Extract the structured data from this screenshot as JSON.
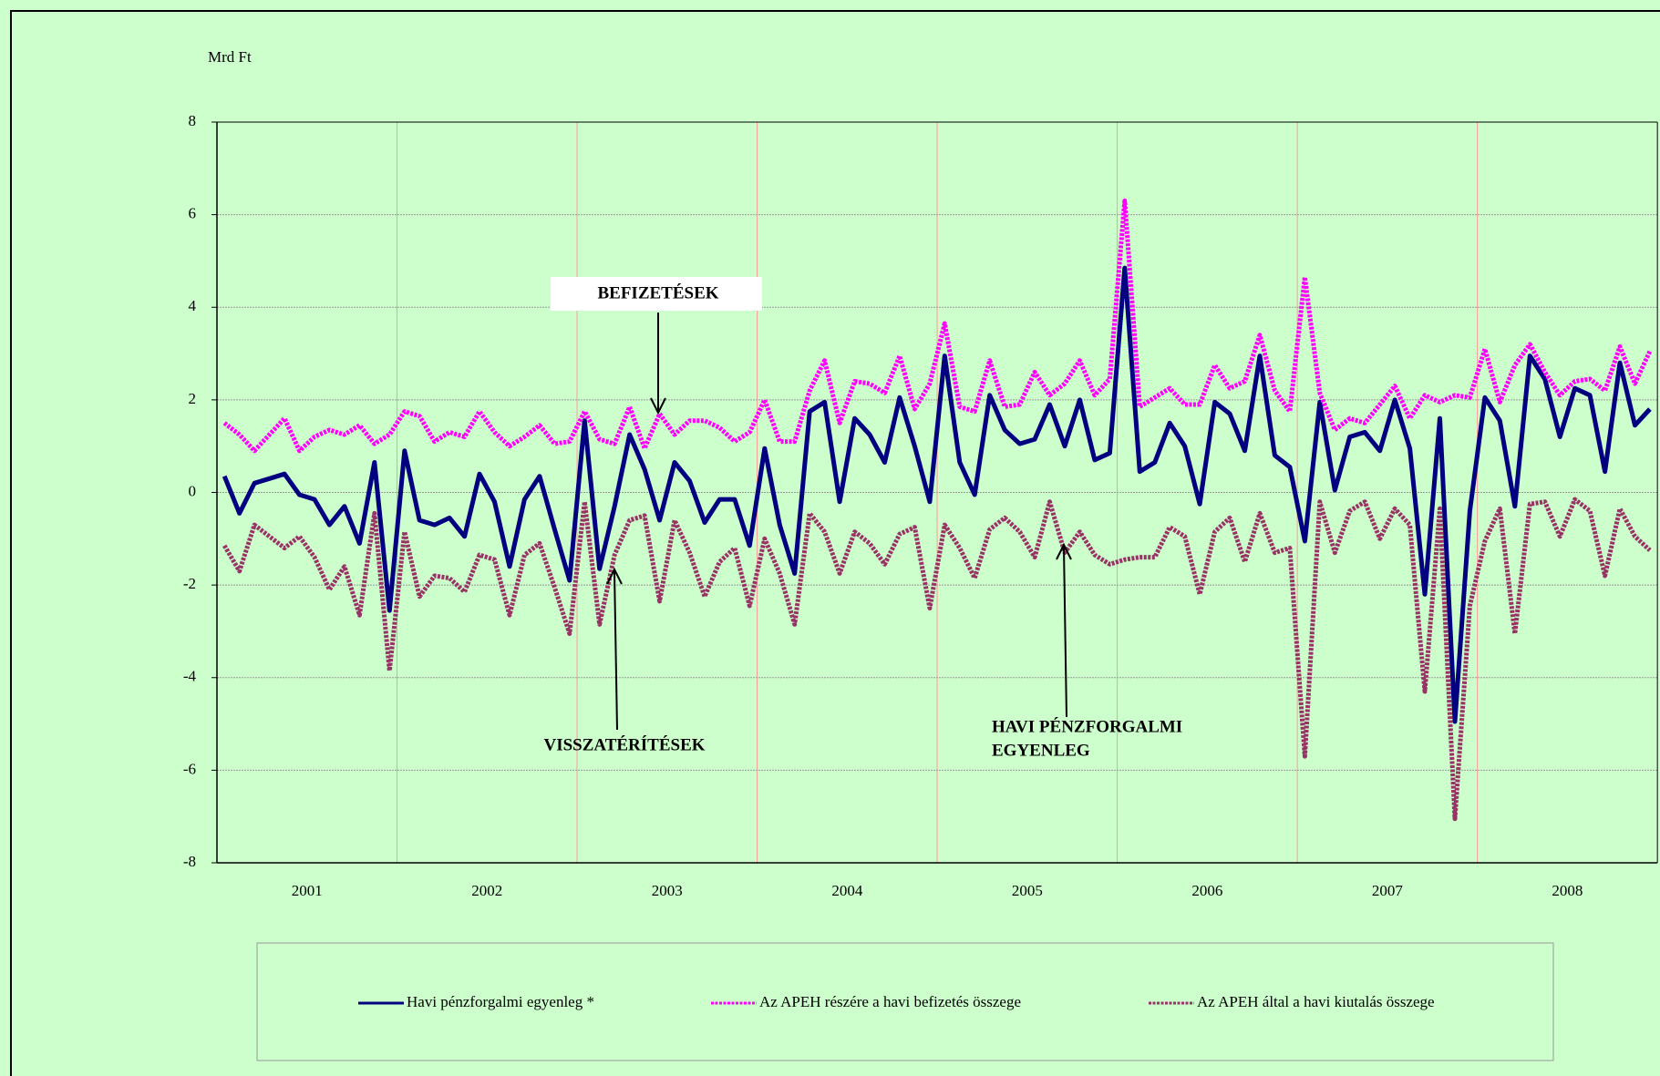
{
  "chart_data": {
    "type": "line",
    "y_axis_label": "Mrd Ft",
    "categories": [
      null,
      null,
      null,
      null,
      null,
      null,
      "2001",
      null,
      null,
      null,
      null,
      null,
      null,
      null,
      null,
      null,
      null,
      null,
      "2002",
      null,
      null,
      null,
      null,
      null,
      null,
      null,
      null,
      null,
      null,
      null,
      "2003",
      null,
      null,
      null,
      null,
      null,
      null,
      null,
      null,
      null,
      null,
      null,
      "2004",
      null,
      null,
      null,
      null,
      null,
      null,
      null,
      null,
      null,
      null,
      null,
      "2005",
      null,
      null,
      null,
      null,
      null,
      null,
      null,
      null,
      null,
      null,
      null,
      "2006",
      null,
      null,
      null,
      null,
      null,
      null,
      null,
      null,
      null,
      null,
      null,
      "2007",
      null,
      null,
      null,
      null,
      null,
      null,
      null,
      null,
      null,
      null,
      null,
      "2008",
      null,
      null,
      null,
      null,
      null
    ],
    "ylim": [
      -8,
      8
    ],
    "yticks": [
      -8,
      -6,
      -4,
      -2,
      0,
      2,
      4,
      6,
      8
    ],
    "grid": true,
    "legend": "bottom",
    "series": [
      {
        "name": "Havi pénzforgalmi egyenleg *",
        "color": "#000080",
        "values": [
          0.35,
          -0.45,
          0.2,
          0.3,
          0.4,
          -0.05,
          -0.15,
          -0.7,
          -0.3,
          -1.1,
          0.65,
          -2.55,
          0.9,
          -0.6,
          -0.7,
          -0.55,
          -0.95,
          0.4,
          -0.2,
          -1.6,
          -0.15,
          0.35,
          -0.8,
          -1.9,
          1.55,
          -1.65,
          -0.3,
          1.25,
          0.5,
          -0.6,
          0.65,
          0.25,
          -0.65,
          -0.15,
          -0.15,
          -1.15,
          0.95,
          -0.7,
          -1.75,
          1.75,
          1.95,
          -0.2,
          1.6,
          1.25,
          0.65,
          2.05,
          1.0,
          -0.2,
          2.95,
          0.65,
          -0.05,
          2.1,
          1.35,
          1.05,
          1.15,
          1.9,
          1.0,
          2.0,
          0.7,
          0.85,
          4.85,
          0.45,
          0.65,
          1.5,
          1.0,
          -0.25,
          1.95,
          1.7,
          0.9,
          2.95,
          0.8,
          0.55,
          -1.05,
          1.95,
          0.05,
          1.2,
          1.3,
          0.9,
          2.0,
          0.95,
          -2.2,
          1.6,
          -4.95,
          -0.4,
          2.05,
          1.55,
          -0.3,
          2.95,
          2.45,
          1.2,
          2.25,
          2.1,
          0.45,
          2.8,
          1.45,
          1.8
        ]
      },
      {
        "name": "Az APEH részére a havi befizetés összege",
        "color": "#ff00ff",
        "values": [
          1.5,
          1.25,
          0.9,
          1.25,
          1.6,
          0.9,
          1.2,
          1.35,
          1.25,
          1.45,
          1.05,
          1.25,
          1.75,
          1.65,
          1.1,
          1.3,
          1.2,
          1.75,
          1.3,
          1.0,
          1.2,
          1.45,
          1.05,
          1.1,
          1.75,
          1.15,
          1.05,
          1.85,
          0.95,
          1.7,
          1.25,
          1.55,
          1.55,
          1.4,
          1.1,
          1.3,
          2.0,
          1.1,
          1.1,
          2.2,
          2.85,
          1.5,
          2.4,
          2.35,
          2.15,
          2.95,
          1.8,
          2.35,
          3.65,
          1.85,
          1.75,
          2.85,
          1.85,
          1.9,
          2.6,
          2.1,
          2.35,
          2.85,
          2.1,
          2.45,
          6.3,
          1.85,
          2.05,
          2.25,
          1.9,
          1.9,
          2.75,
          2.25,
          2.4,
          3.4,
          2.2,
          1.75,
          4.65,
          2.15,
          1.35,
          1.6,
          1.5,
          1.9,
          2.3,
          1.6,
          2.1,
          1.95,
          2.1,
          2.05,
          3.1,
          1.95,
          2.75,
          3.2,
          2.6,
          2.1,
          2.4,
          2.45,
          2.2,
          3.15,
          2.35,
          3.05
        ]
      },
      {
        "name": "Az APEH által a havi kiutalás összege",
        "color": "#993366",
        "values": [
          -1.15,
          -1.7,
          -0.7,
          -0.95,
          -1.2,
          -0.95,
          -1.4,
          -2.1,
          -1.6,
          -2.65,
          -0.45,
          -3.85,
          -0.85,
          -2.25,
          -1.8,
          -1.85,
          -2.15,
          -1.35,
          -1.45,
          -2.65,
          -1.35,
          -1.1,
          -2.05,
          -3.05,
          -0.2,
          -2.85,
          -1.35,
          -0.6,
          -0.5,
          -2.35,
          -0.6,
          -1.3,
          -2.25,
          -1.5,
          -1.2,
          -2.45,
          -1.0,
          -1.75,
          -2.85,
          -0.45,
          -0.85,
          -1.75,
          -0.85,
          -1.1,
          -1.55,
          -0.9,
          -0.75,
          -2.5,
          -0.7,
          -1.2,
          -1.85,
          -0.8,
          -0.55,
          -0.85,
          -1.4,
          -0.2,
          -1.3,
          -0.85,
          -1.35,
          -1.55,
          -1.45,
          -1.4,
          -1.4,
          -0.75,
          -0.95,
          -2.2,
          -0.85,
          -0.55,
          -1.5,
          -0.45,
          -1.3,
          -1.2,
          -5.7,
          -0.2,
          -1.3,
          -0.4,
          -0.2,
          -1.0,
          -0.35,
          -0.7,
          -4.3,
          -0.35,
          -7.05,
          -2.45,
          -1.05,
          -0.35,
          -3.05,
          -0.25,
          -0.2,
          -0.95,
          -0.15,
          -0.4,
          -1.8,
          -0.35,
          -0.95,
          -1.25
        ]
      }
    ],
    "annotations": [
      "BEFIZETÉSEK",
      "VISSZATÉRÍTÉSEK",
      "HAVI PÉNZFORGALMI",
      "EGYENLEG"
    ]
  }
}
